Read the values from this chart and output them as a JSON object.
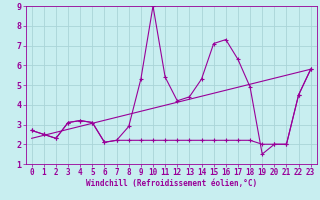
{
  "xlabel": "Windchill (Refroidissement éolien,°C)",
  "bg_color": "#c8eef0",
  "grid_color": "#aad4d8",
  "line_color": "#990099",
  "spine_color": "#990099",
  "xlim": [
    -0.5,
    23.5
  ],
  "ylim": [
    1,
    9
  ],
  "xticks": [
    0,
    1,
    2,
    3,
    4,
    5,
    6,
    7,
    8,
    9,
    10,
    11,
    12,
    13,
    14,
    15,
    16,
    17,
    18,
    19,
    20,
    21,
    22,
    23
  ],
  "yticks": [
    1,
    2,
    3,
    4,
    5,
    6,
    7,
    8,
    9
  ],
  "series1_x": [
    0,
    1,
    2,
    3,
    4,
    5,
    6,
    7,
    8,
    9,
    10,
    11,
    12,
    13,
    14,
    15,
    16,
    17,
    18,
    19,
    20,
    21,
    22,
    23
  ],
  "series1_y": [
    2.7,
    2.5,
    2.3,
    3.1,
    3.2,
    3.1,
    2.1,
    2.2,
    2.9,
    5.3,
    9.0,
    5.4,
    4.2,
    4.4,
    5.3,
    7.1,
    7.3,
    6.3,
    4.9,
    1.5,
    2.0,
    2.0,
    4.5,
    5.8
  ],
  "series2_x": [
    0,
    1,
    2,
    3,
    4,
    5,
    6,
    7,
    8,
    9,
    10,
    11,
    12,
    13,
    14,
    15,
    16,
    17,
    18,
    19,
    20,
    21,
    22,
    23
  ],
  "series2_y": [
    2.7,
    2.5,
    2.3,
    3.1,
    3.2,
    3.1,
    2.1,
    2.2,
    2.2,
    2.2,
    2.2,
    2.2,
    2.2,
    2.2,
    2.2,
    2.2,
    2.2,
    2.2,
    2.2,
    2.0,
    2.0,
    2.0,
    4.5,
    5.8
  ],
  "series3_x": [
    0,
    23
  ],
  "series3_y": [
    2.3,
    5.8
  ],
  "marker": "+",
  "markersize": 3,
  "linewidth": 0.8,
  "tick_fontsize": 5.5,
  "xlabel_fontsize": 5.5
}
